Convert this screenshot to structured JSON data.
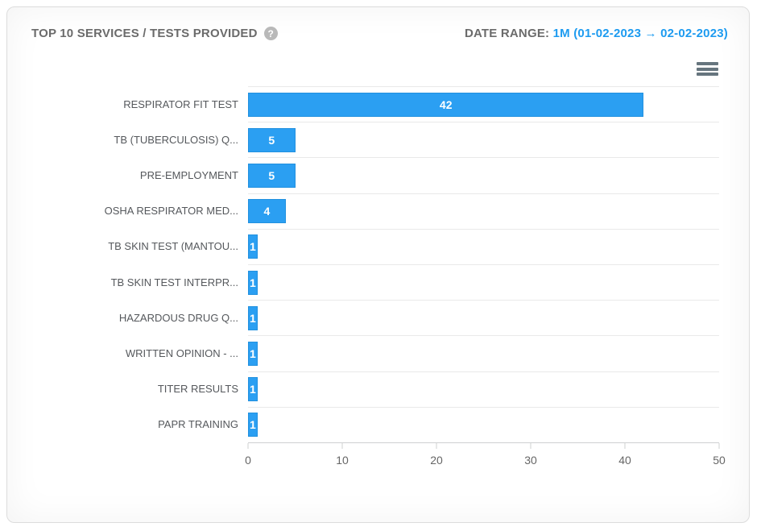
{
  "header": {
    "title": "TOP 10 SERVICES / TESTS PROVIDED",
    "help_icon_glyph": "?",
    "date_range_label": "DATE RANGE:",
    "date_range_value": "1M (01-02-2023 → 02-02-2023)"
  },
  "colors": {
    "bar": "#2b9ff2",
    "date_range_link": "#1d9bf0",
    "title_text": "#6b6b6b",
    "category_text": "#55585c",
    "axis_text": "#666666",
    "grid_line": "#e9e9e9",
    "axis_line": "#cfd0d2",
    "menu_icon": "#66757e",
    "help_icon_bg": "#b9b9b9"
  },
  "chart_data": {
    "type": "bar",
    "orientation": "horizontal",
    "title": "TOP 10 SERVICES / TESTS PROVIDED",
    "categories": [
      "RESPIRATOR FIT TEST",
      "TB (TUBERCULOSIS) Q...",
      "PRE-EMPLOYMENT",
      "OSHA RESPIRATOR MED...",
      "TB SKIN TEST (MANTOU...",
      "TB SKIN TEST INTERPR...",
      "HAZARDOUS DRUG Q...",
      "WRITTEN OPINION - ...",
      "TITER RESULTS",
      "PAPR TRAINING"
    ],
    "values": [
      42,
      5,
      5,
      4,
      1,
      1,
      1,
      1,
      1,
      1
    ],
    "data_labels": [
      "42",
      "5",
      "5",
      "4",
      "1",
      "1",
      "1",
      "1",
      "1",
      "1"
    ],
    "xticks": [
      "0",
      "10",
      "20",
      "30",
      "40",
      "50"
    ],
    "xlim": [
      0,
      50
    ],
    "xlabel": "",
    "ylabel": "",
    "legend": "none",
    "grid": "category separator lines only"
  }
}
